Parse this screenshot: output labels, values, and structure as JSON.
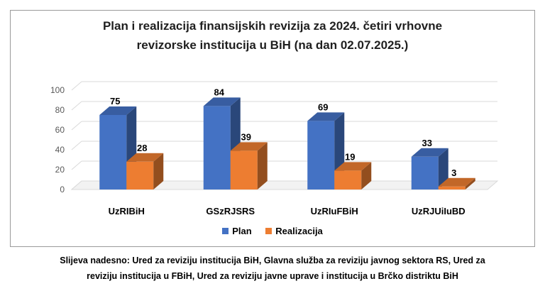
{
  "chart_data": {
    "type": "bar",
    "title_line1": "Plan i realizacija finansijskih revizija za 2024. četiri vrhovne",
    "title_line2": "revizorske institucija u BiH (na dan 02.07.2025.)",
    "categories": [
      "UzRIBiH",
      "GSzRJSRS",
      "UzRIuFBiH",
      "UzRJUiIuBD"
    ],
    "series": [
      {
        "name": "Plan",
        "values": [
          75,
          84,
          69,
          33
        ],
        "color": "#4472C4"
      },
      {
        "name": "Realizacija",
        "values": [
          28,
          39,
          19,
          3
        ],
        "color": "#ED7D31"
      }
    ],
    "y_ticks": [
      "0",
      "20",
      "40",
      "60",
      "80",
      "100"
    ],
    "ylim": [
      0,
      100
    ],
    "grid": true,
    "legend_position": "bottom"
  },
  "caption_line1": "Slijeva nadesno: Ured za reviziju institucija BiH, Glavna služba za reviziju javnog sektora RS, Ured za",
  "caption_line2": "reviziju institucija u FBiH, Ured za reviziju javne uprave i institucija u Brčko distriktu BiH"
}
